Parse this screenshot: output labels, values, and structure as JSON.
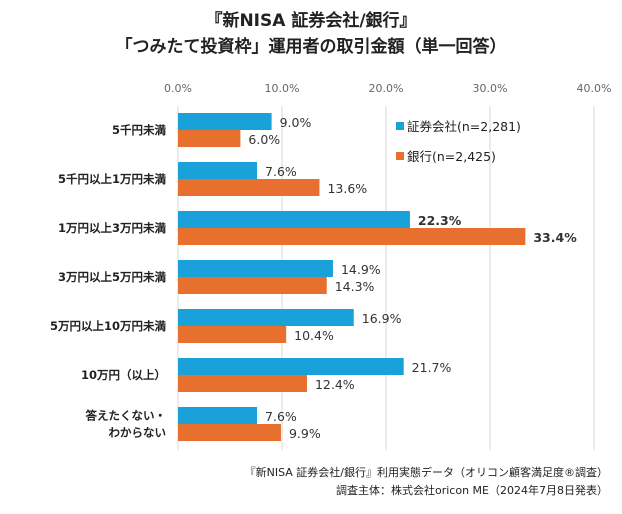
{
  "title_line1": "『新NISA 証券会社/銀行』",
  "title_line2": "「つみたて投資枠」運用者の取引金額（単一回答）",
  "footnote_line1": "『新NISA 証券会社/銀行』利用実態データ（オリコン顧客満足度®調査）",
  "footnote_line2": "調査主体：株式会社oricon ME（2024年7月8日発表）",
  "chart_data": {
    "type": "bar",
    "orientation": "horizontal",
    "title": "『新NISA 証券会社/銀行』「つみたて投資枠」運用者の取引金額（単一回答）",
    "categories": [
      "5千円未満",
      "5千円以上1万円未満",
      "1万円以上3万円未満",
      "3万円以上5万円未満",
      "5万円以上10万円未満",
      "10万円（以上）",
      "答えたくない・わからない"
    ],
    "category_lines": [
      [
        "5千円未満"
      ],
      [
        "5千円以上1万円未満"
      ],
      [
        "1万円以上3万円未満"
      ],
      [
        "3万円以上5万円未満"
      ],
      [
        "5万円以上10万円未満"
      ],
      [
        "10万円（以上）"
      ],
      [
        "答えたくない・",
        "わからない"
      ]
    ],
    "series": [
      {
        "name": "証券会社(n=2,281)",
        "color": "#1BA1DA",
        "values": [
          9.0,
          7.6,
          22.3,
          14.9,
          16.9,
          21.7,
          7.6
        ]
      },
      {
        "name": "銀行(n=2,425)",
        "color": "#E8702E",
        "values": [
          6.0,
          13.6,
          33.4,
          14.3,
          10.4,
          12.4,
          9.9
        ]
      }
    ],
    "xlim": [
      0,
      40
    ],
    "xticks": [
      "0.0%",
      "10.0%",
      "20.0%",
      "30.0%",
      "40.0%"
    ],
    "xtick_values": [
      0,
      10,
      20,
      30,
      40
    ],
    "grid": true,
    "legend": "top-right",
    "bold_labels": [
      [
        2,
        0
      ],
      [
        2,
        1
      ]
    ]
  }
}
